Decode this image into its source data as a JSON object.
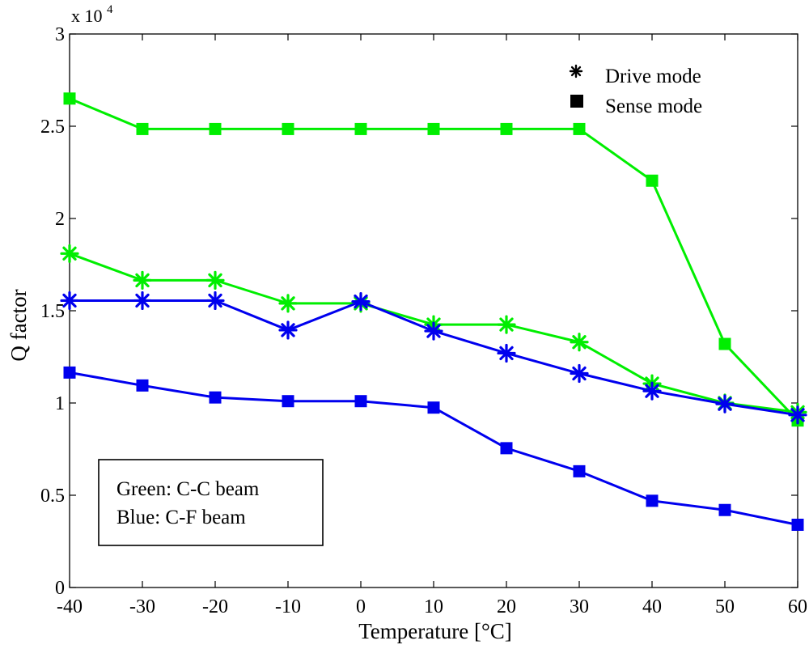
{
  "chart_data": {
    "type": "line",
    "xlabel": "Temperature [°C]",
    "ylabel": "Q factor",
    "x": [
      -40,
      -30,
      -20,
      -10,
      0,
      10,
      20,
      30,
      40,
      50,
      60
    ],
    "xlim": [
      -40,
      60
    ],
    "ylim": [
      0,
      30000
    ],
    "x_ticks": [
      "-40",
      "-30",
      "-20",
      "-10",
      "0",
      "10",
      "20",
      "30",
      "40",
      "50",
      "60"
    ],
    "y_ticks": [
      {
        "value": 0,
        "label": "0"
      },
      {
        "value": 5000,
        "label": "0.5"
      },
      {
        "value": 10000,
        "label": "1"
      },
      {
        "value": 15000,
        "label": "1.5"
      },
      {
        "value": 20000,
        "label": "2"
      },
      {
        "value": 25000,
        "label": "2.5"
      },
      {
        "value": 30000,
        "label": "3"
      }
    ],
    "y_exponent": {
      "base": "x 10",
      "power": "4"
    },
    "grid": false,
    "series": [
      {
        "name": "C-C beam, Sense mode",
        "color": "#00ee00",
        "marker": "square",
        "values": [
          26500,
          24850,
          24850,
          24850,
          24850,
          24850,
          24850,
          24850,
          22050,
          13200,
          9050
        ]
      },
      {
        "name": "C-C beam, Drive mode",
        "color": "#00ee00",
        "marker": "asterisk",
        "values": [
          18100,
          16650,
          16650,
          15400,
          15400,
          14250,
          14250,
          13300,
          11050,
          10000,
          9500
        ]
      },
      {
        "name": "C-F beam, Drive mode",
        "color": "#0000ee",
        "marker": "asterisk",
        "values": [
          15550,
          15550,
          15550,
          13950,
          15500,
          13900,
          12700,
          11600,
          10650,
          9950,
          9350
        ]
      },
      {
        "name": "C-F beam, Sense mode",
        "color": "#0000ee",
        "marker": "square",
        "values": [
          11650,
          10950,
          10300,
          10100,
          10100,
          9750,
          7550,
          6300,
          4700,
          4200,
          3400
        ]
      }
    ],
    "legend": {
      "position": "top-right",
      "entries": [
        {
          "marker": "asterisk",
          "label": "Drive mode"
        },
        {
          "marker": "square",
          "label": "Sense mode"
        }
      ]
    },
    "annotation": {
      "position": "bottom-left",
      "lines": [
        "Green: C-C beam",
        "Blue: C-F beam"
      ]
    }
  }
}
